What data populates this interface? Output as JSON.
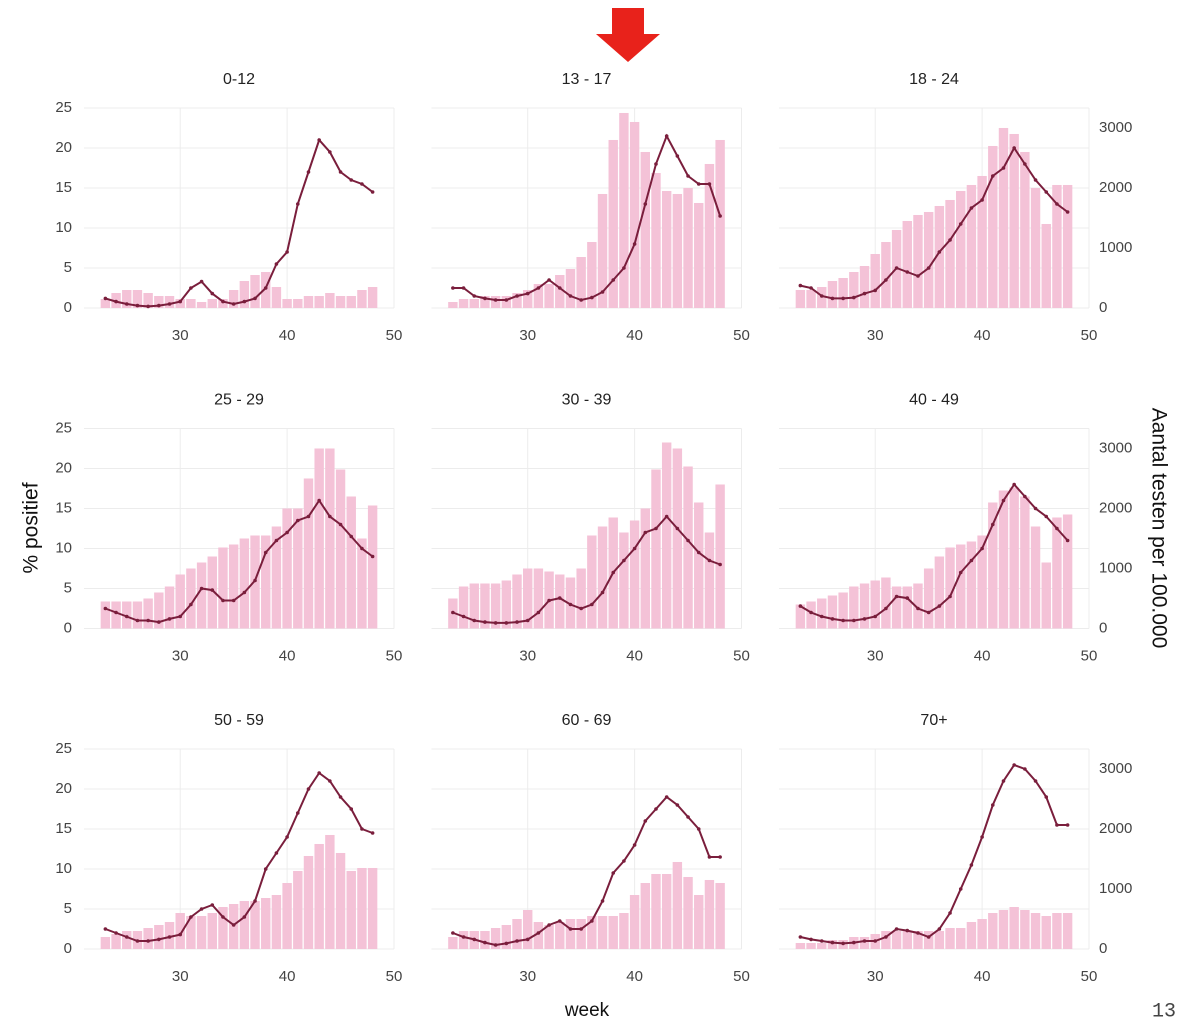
{
  "chart_data": [
    {
      "type": "bar-line",
      "title": "0-12",
      "x": [
        23,
        24,
        25,
        26,
        27,
        28,
        29,
        30,
        31,
        32,
        33,
        34,
        35,
        36,
        37,
        38,
        39,
        40,
        41,
        42,
        43,
        44,
        45,
        46,
        47,
        48
      ],
      "xlim": [
        21,
        50
      ],
      "xticks": [
        30,
        40,
        50
      ],
      "ylim": [
        0,
        25
      ],
      "yticks": [
        0,
        5,
        10,
        15,
        20,
        25
      ],
      "y2lim": [
        0,
        3333
      ],
      "grid": true,
      "series": [
        {
          "type": "bar",
          "axis": "y2",
          "color": "#f4c2d7",
          "values": [
            150,
            250,
            300,
            300,
            250,
            200,
            200,
            150,
            150,
            100,
            150,
            150,
            300,
            450,
            550,
            600,
            350,
            150,
            150,
            200,
            200,
            250,
            200,
            200,
            300,
            350
          ]
        },
        {
          "type": "line",
          "color": "#7a1e3c",
          "values": [
            1.2,
            0.8,
            0.5,
            0.3,
            0.2,
            0.3,
            0.5,
            0.8,
            2.5,
            3.3,
            1.8,
            0.8,
            0.5,
            0.8,
            1.2,
            2.5,
            5.5,
            7,
            13,
            17,
            21,
            19.5,
            17,
            16,
            15.5,
            14.5
          ]
        }
      ]
    },
    {
      "type": "bar-line",
      "title": "13 - 17",
      "x": [
        23,
        24,
        25,
        26,
        27,
        28,
        29,
        30,
        31,
        32,
        33,
        34,
        35,
        36,
        37,
        38,
        39,
        40,
        41,
        42,
        43,
        44,
        45,
        46,
        47,
        48
      ],
      "xlim": [
        21,
        50
      ],
      "xticks": [
        30,
        40,
        50
      ],
      "ylim": [
        0,
        25
      ],
      "yticks": [
        0,
        5,
        10,
        15,
        20,
        25
      ],
      "y2lim": [
        0,
        3333
      ],
      "grid": true,
      "series": [
        {
          "type": "bar",
          "axis": "y2",
          "color": "#f4c2d7",
          "values": [
            100,
            150,
            150,
            200,
            200,
            200,
            250,
            300,
            400,
            400,
            550,
            650,
            850,
            1100,
            1900,
            2800,
            3250,
            3100,
            2600,
            2250,
            1950,
            1900,
            2000,
            1750,
            2400,
            2800
          ]
        },
        {
          "type": "line",
          "color": "#7a1e3c",
          "values": [
            2.5,
            2.5,
            1.5,
            1.2,
            1,
            1,
            1.5,
            1.8,
            2.5,
            3.5,
            2.5,
            1.5,
            1,
            1.3,
            2,
            3.5,
            5,
            8,
            13,
            18,
            21.5,
            19,
            16.5,
            15.5,
            15.5,
            11.5
          ]
        }
      ]
    },
    {
      "type": "bar-line",
      "title": "18 - 24",
      "x": [
        23,
        24,
        25,
        26,
        27,
        28,
        29,
        30,
        31,
        32,
        33,
        34,
        35,
        36,
        37,
        38,
        39,
        40,
        41,
        42,
        43,
        44,
        45,
        46,
        47,
        48
      ],
      "xlim": [
        21,
        50
      ],
      "xticks": [
        30,
        40,
        50
      ],
      "ylim": [
        0,
        25
      ],
      "yticks": [
        0,
        5,
        10,
        15,
        20,
        25
      ],
      "y2lim": [
        0,
        3333
      ],
      "y2ticks": [
        0,
        1000,
        2000,
        3000
      ],
      "grid": true,
      "series": [
        {
          "type": "bar",
          "axis": "y2",
          "color": "#f4c2d7",
          "values": [
            300,
            300,
            350,
            450,
            500,
            600,
            700,
            900,
            1100,
            1300,
            1450,
            1550,
            1600,
            1700,
            1800,
            1950,
            2050,
            2200,
            2700,
            3000,
            2900,
            2600,
            2000,
            1400,
            2050,
            2050
          ]
        },
        {
          "type": "line",
          "color": "#7a1e3c",
          "values": [
            2.8,
            2.5,
            1.5,
            1.2,
            1.2,
            1.3,
            1.8,
            2.2,
            3.5,
            5,
            4.5,
            4,
            5,
            7,
            8.5,
            10.5,
            12.5,
            13.5,
            16.5,
            17.5,
            20,
            18,
            16,
            14.5,
            13,
            12
          ]
        }
      ]
    },
    {
      "type": "bar-line",
      "title": "25 - 29",
      "x": [
        23,
        24,
        25,
        26,
        27,
        28,
        29,
        30,
        31,
        32,
        33,
        34,
        35,
        36,
        37,
        38,
        39,
        40,
        41,
        42,
        43,
        44,
        45,
        46,
        47,
        48
      ],
      "xlim": [
        21,
        50
      ],
      "xticks": [
        30,
        40,
        50
      ],
      "ylim": [
        0,
        25
      ],
      "yticks": [
        0,
        5,
        10,
        15,
        20,
        25
      ],
      "y2lim": [
        0,
        3333
      ],
      "grid": true,
      "series": [
        {
          "type": "bar",
          "axis": "y2",
          "color": "#f4c2d7",
          "values": [
            450,
            450,
            450,
            450,
            500,
            600,
            700,
            900,
            1000,
            1100,
            1200,
            1350,
            1400,
            1500,
            1550,
            1550,
            1700,
            2000,
            2000,
            2500,
            3000,
            3000,
            2650,
            2200,
            1500,
            2050
          ]
        },
        {
          "type": "line",
          "color": "#7a1e3c",
          "values": [
            2.5,
            2,
            1.5,
            1,
            1,
            0.8,
            1.2,
            1.5,
            3,
            5,
            4.8,
            3.5,
            3.5,
            4.5,
            6,
            9.5,
            11,
            12,
            13.5,
            14,
            16,
            14,
            13,
            11.5,
            10,
            9
          ]
        }
      ]
    },
    {
      "type": "bar-line",
      "title": "30 - 39",
      "x": [
        23,
        24,
        25,
        26,
        27,
        28,
        29,
        30,
        31,
        32,
        33,
        34,
        35,
        36,
        37,
        38,
        39,
        40,
        41,
        42,
        43,
        44,
        45,
        46,
        47,
        48
      ],
      "xlim": [
        21,
        50
      ],
      "xticks": [
        30,
        40,
        50
      ],
      "ylim": [
        0,
        25
      ],
      "yticks": [
        0,
        5,
        10,
        15,
        20,
        25
      ],
      "y2lim": [
        0,
        3333
      ],
      "grid": true,
      "series": [
        {
          "type": "bar",
          "axis": "y2",
          "color": "#f4c2d7",
          "values": [
            500,
            700,
            750,
            750,
            750,
            800,
            900,
            1000,
            1000,
            950,
            900,
            850,
            1000,
            1550,
            1700,
            1850,
            1600,
            1800,
            2000,
            2650,
            3100,
            3000,
            2700,
            2100,
            1600,
            2400
          ]
        },
        {
          "type": "line",
          "color": "#7a1e3c",
          "values": [
            2,
            1.5,
            1,
            0.8,
            0.7,
            0.7,
            0.8,
            1,
            2,
            3.5,
            3.8,
            3,
            2.5,
            3,
            4.5,
            7,
            8.5,
            10,
            12,
            12.5,
            14,
            12.5,
            11,
            9.5,
            8.5,
            8
          ]
        }
      ]
    },
    {
      "type": "bar-line",
      "title": "40 - 49",
      "x": [
        23,
        24,
        25,
        26,
        27,
        28,
        29,
        30,
        31,
        32,
        33,
        34,
        35,
        36,
        37,
        38,
        39,
        40,
        41,
        42,
        43,
        44,
        45,
        46,
        47,
        48
      ],
      "xlim": [
        21,
        50
      ],
      "xticks": [
        30,
        40,
        50
      ],
      "ylim": [
        0,
        25
      ],
      "yticks": [
        0,
        5,
        10,
        15,
        20,
        25
      ],
      "y2lim": [
        0,
        3333
      ],
      "y2ticks": [
        0,
        1000,
        2000,
        3000
      ],
      "grid": true,
      "series": [
        {
          "type": "bar",
          "axis": "y2",
          "color": "#f4c2d7",
          "values": [
            400,
            450,
            500,
            550,
            600,
            700,
            750,
            800,
            850,
            700,
            700,
            750,
            1000,
            1200,
            1350,
            1400,
            1450,
            1550,
            2100,
            2300,
            2350,
            2200,
            1700,
            1100,
            1850,
            1900
          ]
        },
        {
          "type": "line",
          "color": "#7a1e3c",
          "values": [
            2.8,
            2,
            1.5,
            1.2,
            1,
            1,
            1.2,
            1.5,
            2.5,
            4,
            3.8,
            2.5,
            2,
            2.8,
            4,
            7,
            8.5,
            10,
            13,
            16,
            18,
            16.5,
            15,
            14,
            12.5,
            11
          ]
        }
      ]
    },
    {
      "type": "bar-line",
      "title": "50 - 59",
      "x": [
        23,
        24,
        25,
        26,
        27,
        28,
        29,
        30,
        31,
        32,
        33,
        34,
        35,
        36,
        37,
        38,
        39,
        40,
        41,
        42,
        43,
        44,
        45,
        46,
        47,
        48
      ],
      "xlim": [
        21,
        50
      ],
      "xticks": [
        30,
        40,
        50
      ],
      "ylim": [
        0,
        25
      ],
      "yticks": [
        0,
        5,
        10,
        15,
        20,
        25
      ],
      "y2lim": [
        0,
        3333
      ],
      "grid": true,
      "series": [
        {
          "type": "bar",
          "axis": "y2",
          "color": "#f4c2d7",
          "values": [
            200,
            250,
            300,
            300,
            350,
            400,
            450,
            600,
            550,
            550,
            600,
            700,
            750,
            800,
            800,
            850,
            900,
            1100,
            1300,
            1550,
            1750,
            1900,
            1600,
            1300,
            1350,
            1350
          ]
        },
        {
          "type": "line",
          "color": "#7a1e3c",
          "values": [
            2.5,
            2,
            1.5,
            1,
            1,
            1.2,
            1.5,
            1.8,
            4,
            5,
            5.5,
            4,
            3,
            4,
            6,
            10,
            12,
            14,
            17,
            20,
            22,
            21,
            19,
            17.5,
            15,
            14.5
          ]
        }
      ]
    },
    {
      "type": "bar-line",
      "title": "60 - 69",
      "x": [
        23,
        24,
        25,
        26,
        27,
        28,
        29,
        30,
        31,
        32,
        33,
        34,
        35,
        36,
        37,
        38,
        39,
        40,
        41,
        42,
        43,
        44,
        45,
        46,
        47,
        48
      ],
      "xlim": [
        21,
        50
      ],
      "xticks": [
        30,
        40,
        50
      ],
      "ylim": [
        0,
        25
      ],
      "yticks": [
        0,
        5,
        10,
        15,
        20,
        25
      ],
      "y2lim": [
        0,
        3333
      ],
      "grid": true,
      "series": [
        {
          "type": "bar",
          "axis": "y2",
          "color": "#f4c2d7",
          "values": [
            200,
            300,
            300,
            300,
            350,
            400,
            500,
            650,
            450,
            400,
            450,
            500,
            500,
            550,
            550,
            550,
            600,
            900,
            1100,
            1250,
            1250,
            1450,
            1200,
            900,
            1150,
            1100
          ]
        },
        {
          "type": "line",
          "color": "#7a1e3c",
          "values": [
            2,
            1.5,
            1.2,
            0.8,
            0.5,
            0.7,
            1,
            1.2,
            2,
            3,
            3.5,
            2.5,
            2.5,
            3.5,
            6,
            9.5,
            11,
            13,
            16,
            17.5,
            19,
            18,
            16.5,
            15,
            11.5,
            11.5
          ]
        }
      ]
    },
    {
      "type": "bar-line",
      "title": "70+",
      "x": [
        23,
        24,
        25,
        26,
        27,
        28,
        29,
        30,
        31,
        32,
        33,
        34,
        35,
        36,
        37,
        38,
        39,
        40,
        41,
        42,
        43,
        44,
        45,
        46,
        47,
        48
      ],
      "xlim": [
        21,
        50
      ],
      "xticks": [
        30,
        40,
        50
      ],
      "ylim": [
        0,
        25
      ],
      "yticks": [
        0,
        5,
        10,
        15,
        20,
        25
      ],
      "y2lim": [
        0,
        3333
      ],
      "y2ticks": [
        0,
        1000,
        2000,
        3000
      ],
      "grid": true,
      "series": [
        {
          "type": "bar",
          "axis": "y2",
          "color": "#f4c2d7",
          "values": [
            100,
            100,
            100,
            150,
            150,
            200,
            200,
            250,
            300,
            300,
            300,
            300,
            300,
            300,
            350,
            350,
            450,
            500,
            600,
            650,
            700,
            650,
            600,
            550,
            600,
            600
          ]
        },
        {
          "type": "line",
          "color": "#7a1e3c",
          "values": [
            1.5,
            1.2,
            1,
            0.8,
            0.7,
            0.8,
            1,
            1,
            1.5,
            2.5,
            2.3,
            2,
            1.5,
            2.5,
            4.5,
            7.5,
            10.5,
            14,
            18,
            21,
            23,
            22.5,
            21,
            19,
            15.5,
            15.5
          ]
        }
      ]
    }
  ],
  "axis_labels": {
    "y": "% positief",
    "y2": "Aantal testen per 100.000",
    "x": "week"
  },
  "page_number": "13"
}
